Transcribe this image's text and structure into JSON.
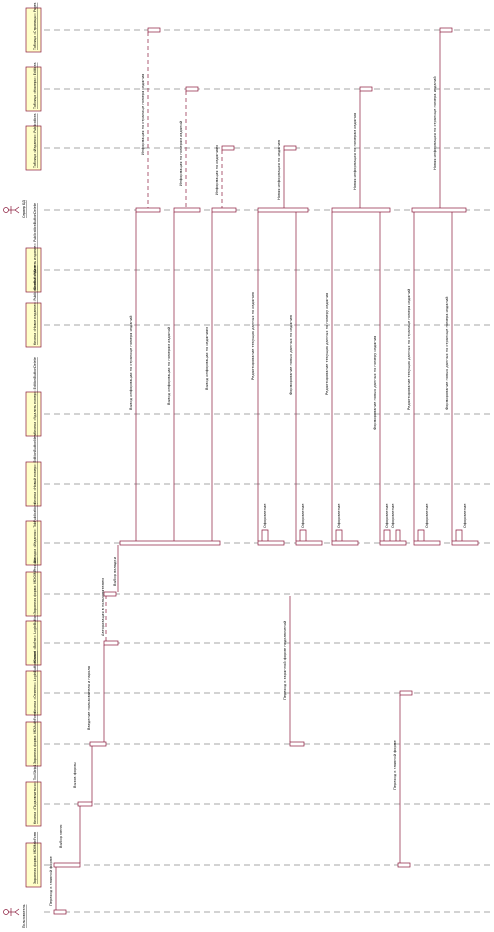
{
  "participants": [
    {
      "id": "p0",
      "label": "Пользователь",
      "actor": true
    },
    {
      "id": "p1",
      "label": "Экранная форма: MDIMainForm"
    },
    {
      "id": "p2",
      "label": "Кнопка «Подключиться»: ToolStrip1"
    },
    {
      "id": "p3",
      "label": "Экранная форма: MDIAuthForm"
    },
    {
      "id": "p4",
      "label": "Кнопка «Отмена»: LoginButtonCancel"
    },
    {
      "id": "p5",
      "label": "Кнопка «Войти»: LoginButton"
    },
    {
      "id": "p6",
      "label": "Экранная форма: MDIOIMProducts"
    },
    {
      "id": "p7",
      "label": "Вкладка «Издания»: TabPublications"
    },
    {
      "id": "p8",
      "label": "Кнопка «Новый номер»: EditionButtonNew"
    },
    {
      "id": "p9",
      "label": "Кнопка «Удалить номер»: EditionButtonDelete"
    },
    {
      "id": "p10",
      "label": "Кнопка «Новое издание»: PublicationButtonNew"
    },
    {
      "id": "p11",
      "label": "Кнопка «Удалить издание»: PublicationButtonDelete"
    },
    {
      "id": "p12",
      "label": "Сервер БД",
      "actor": true
    },
    {
      "id": "p13",
      "label": "Таблица «Издания»: Publications"
    },
    {
      "id": "p14",
      "label": "Таблица «Номера»: Editions"
    },
    {
      "id": "p15",
      "label": "Таблица «Страницы»: Pages"
    }
  ],
  "messages": [
    {
      "id": "m1",
      "label": "Переход к главной форме"
    },
    {
      "id": "m2",
      "label": "Выбор меню"
    },
    {
      "id": "m3",
      "label": "Вызов формы"
    },
    {
      "id": "m4",
      "label": "Введение пользователя и пароля"
    },
    {
      "id": "m5",
      "label": "Авторизация в пользователем"
    },
    {
      "id": "m6",
      "label": "Выбор вкладки"
    },
    {
      "id": "m7",
      "label": "Переход к главной форме"
    },
    {
      "id": "m8",
      "label": "Переход к экранной форме подключений"
    },
    {
      "id": "m9",
      "label": "Вывод информации по странице номера изданий"
    },
    {
      "id": "m10",
      "label": "Вывод информации по номерам изданий"
    },
    {
      "id": "m11",
      "label": "Вывод информации по изданиям"
    },
    {
      "id": "m12",
      "label": "Информация по странице номера издания"
    },
    {
      "id": "m13",
      "label": "Информация по номерам изданий"
    },
    {
      "id": "m14",
      "label": "Информация по изданиям"
    },
    {
      "id": "m15",
      "label": "Оформление"
    },
    {
      "id": "m16",
      "label": "Оформление"
    },
    {
      "id": "m17",
      "label": "Оформление"
    },
    {
      "id": "m18",
      "label": "Оформление"
    },
    {
      "id": "m19",
      "label": "Оформление"
    },
    {
      "id": "m20",
      "label": "Оформление"
    },
    {
      "id": "m21",
      "label": "Оформление"
    },
    {
      "id": "m22",
      "label": "Редактирование текущих данных по изданию"
    },
    {
      "id": "m23",
      "label": "Формирование новых данных по изданию"
    },
    {
      "id": "m24",
      "label": "Новая информация по изданию"
    },
    {
      "id": "m25",
      "label": "Редактирование текущих данных по номеру издания"
    },
    {
      "id": "m26",
      "label": "Формирование новых данных по номеру издания"
    },
    {
      "id": "m27",
      "label": "Новая информация по номерам издания"
    },
    {
      "id": "m28",
      "label": "Редактирование текущих данных по странице номера изданий"
    },
    {
      "id": "m29",
      "label": "Формирование новых данных по странице номера изданий"
    },
    {
      "id": "m30",
      "label": "Новая информация по странице номера изданий"
    }
  ],
  "colors": {
    "line": "#8b1a3c",
    "lifeline": "#8a8a8a",
    "box": "#ffffc8"
  }
}
